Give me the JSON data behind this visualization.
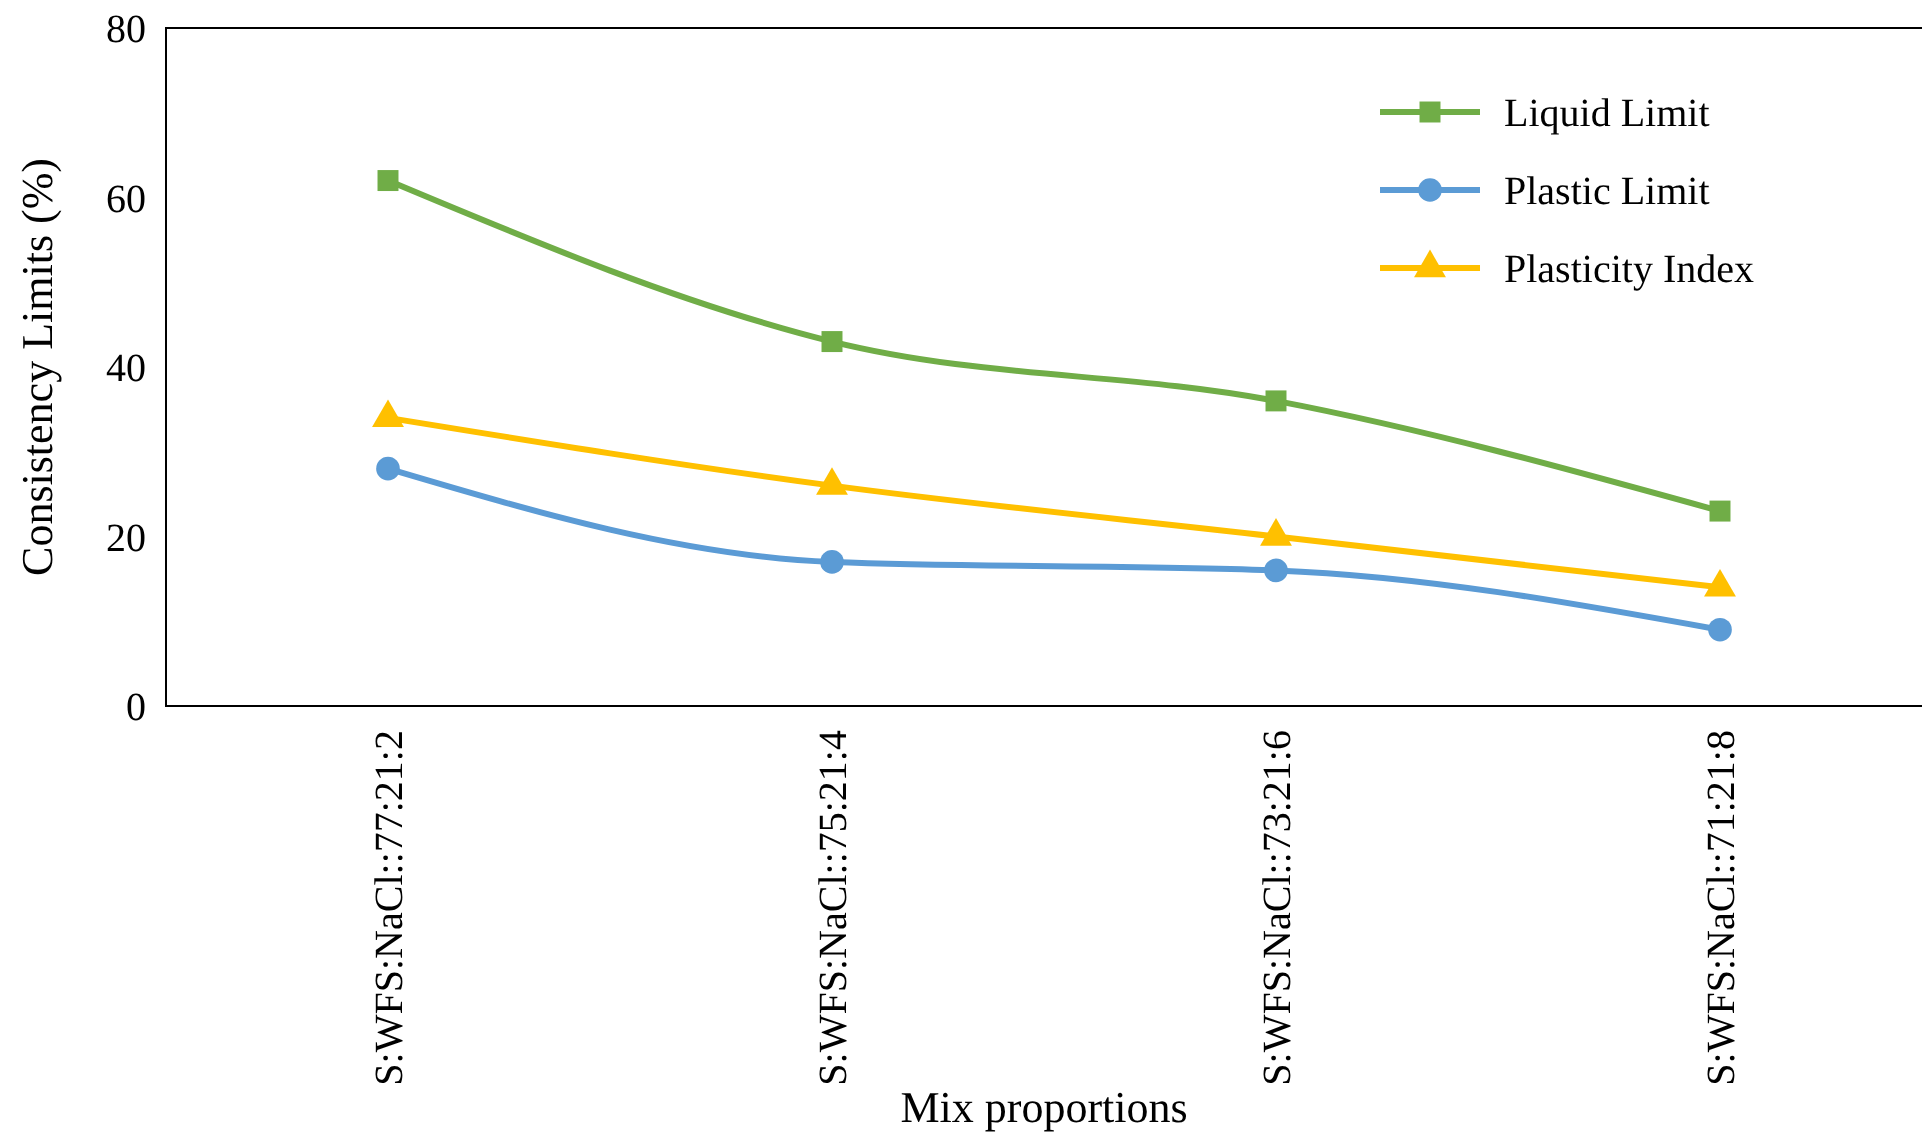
{
  "chart_data": {
    "type": "line",
    "xlabel": "Mix proportions",
    "ylabel": "Consistency Limits (%)",
    "categories": [
      "S:WFS:NaCl::77:21:2",
      "S:WFS:NaCl::75:21:4",
      "S:WFS:NaCl::73:21:6",
      "S:WFS:NaCl::71:21:8"
    ],
    "series": [
      {
        "name": "Liquid Limit",
        "color": "#70ad47",
        "marker": "square",
        "values": [
          62,
          43,
          36,
          23
        ]
      },
      {
        "name": "Plastic Limit",
        "color": "#5b9bd5",
        "marker": "circle",
        "values": [
          28,
          17,
          16,
          9
        ]
      },
      {
        "name": "Plasticity Index",
        "color": "#ffc000",
        "marker": "triangle",
        "values": [
          34,
          26,
          20,
          14
        ]
      }
    ],
    "ylim": [
      0,
      80
    ],
    "yticks": [
      0,
      20,
      40,
      60,
      80
    ],
    "grid": false,
    "legend": "top right",
    "line_style": "solid"
  }
}
